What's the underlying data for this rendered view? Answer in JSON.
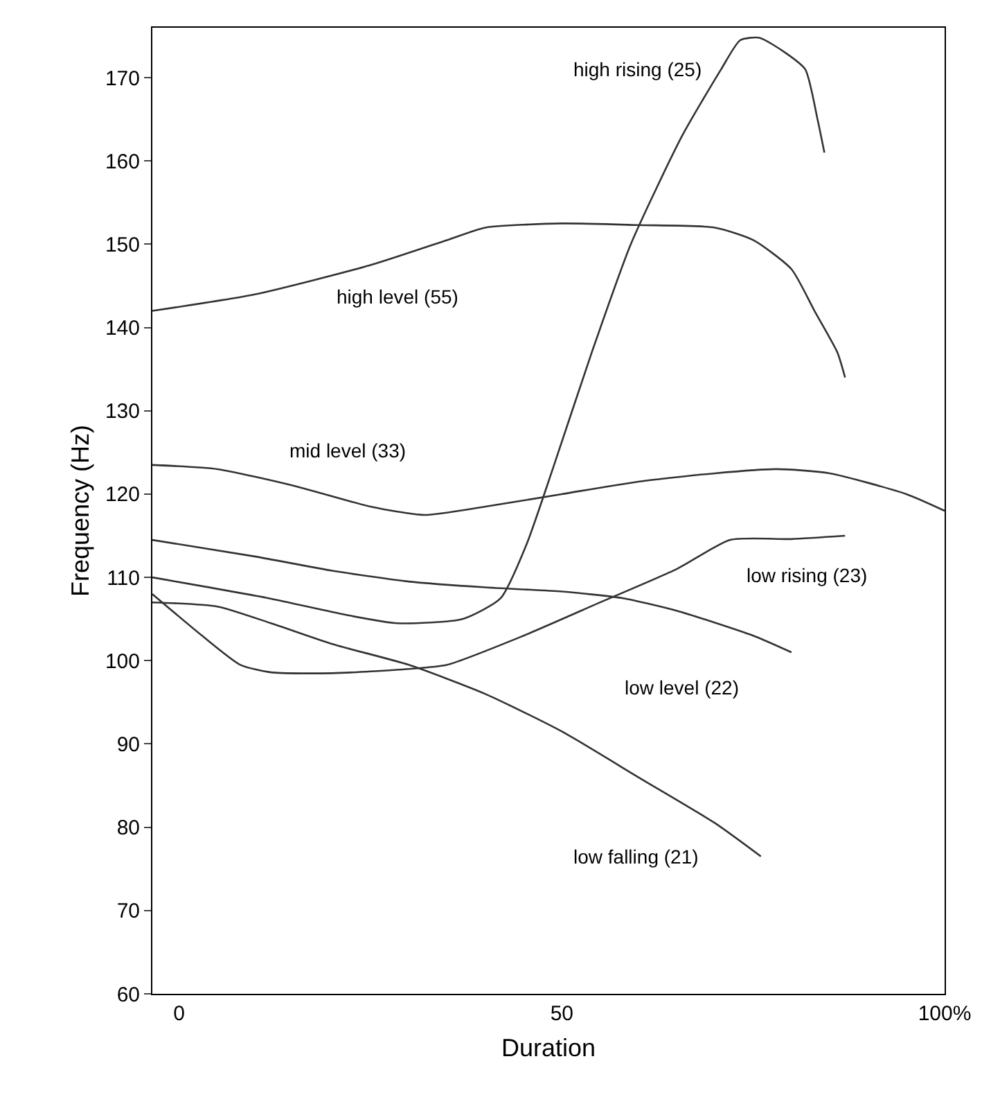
{
  "chart_data": {
    "type": "line",
    "xlabel": "Duration",
    "ylabel": "Frequency (Hz)",
    "xlim": [
      -3.5,
      100
    ],
    "xticks": [
      0,
      50,
      {
        "value": 100,
        "label": "100%"
      }
    ],
    "ylim": [
      60,
      176
    ],
    "yticks": [
      60,
      70,
      80,
      90,
      100,
      110,
      120,
      130,
      140,
      150,
      160,
      170
    ],
    "grid": false,
    "legend": false,
    "marker": "none",
    "line_style": "solid",
    "series": [
      {
        "name": "high rising (25)",
        "color": "#333333",
        "x": [
          -3.5,
          11.7,
          21.8,
          28.5,
          37,
          42,
          45.4,
          48.8,
          53.9,
          59,
          65.7,
          70.8,
          73.3,
          75.8,
          79.2,
          81.8,
          83.4,
          84.3
        ],
        "values": [
          110,
          107.5,
          105.5,
          104.5,
          105,
          107.5,
          114,
          123,
          137,
          150,
          163,
          171,
          174.5,
          174.8,
          173,
          171,
          165,
          161
        ]
      },
      {
        "name": "high level (55)",
        "color": "#333333",
        "x": [
          -3.5,
          10,
          25,
          35,
          40,
          50,
          60,
          70,
          75,
          80,
          83,
          86,
          87
        ],
        "values": [
          142,
          144,
          147.5,
          150.5,
          152,
          152.5,
          152.3,
          152,
          150.5,
          147,
          142,
          137,
          134
        ]
      },
      {
        "name": "mid level (33)",
        "color": "#333333",
        "x": [
          -3.5,
          5,
          15,
          25,
          32,
          40,
          50,
          60,
          70,
          78,
          85,
          95,
          100
        ],
        "values": [
          123.5,
          123,
          121,
          118.5,
          117.5,
          118.5,
          120,
          121.5,
          122.5,
          123,
          122.5,
          120,
          118
        ]
      },
      {
        "name": "low level (22)",
        "color": "#333333",
        "x": [
          -3.5,
          10,
          20,
          30,
          40,
          50,
          58,
          65,
          75,
          80
        ],
        "values": [
          114.5,
          112.5,
          110.8,
          109.5,
          108.8,
          108.3,
          107.5,
          106,
          103,
          101
        ]
      },
      {
        "name": "low rising (23)",
        "color": "#333333",
        "x": [
          -3.5,
          3,
          8,
          12,
          20,
          30,
          35,
          45,
          55,
          65,
          72,
          80,
          87
        ],
        "values": [
          108,
          103,
          99.5,
          98.6,
          98.5,
          99,
          99.5,
          103,
          107,
          111,
          114.5,
          114.6,
          115
        ]
      },
      {
        "name": "low falling (21)",
        "color": "#333333",
        "x": [
          -3.5,
          5,
          12,
          20,
          30,
          40,
          50,
          60,
          70,
          76
        ],
        "values": [
          107,
          106.5,
          104.5,
          102,
          99.5,
          96,
          91.5,
          86,
          80.5,
          76.5
        ]
      }
    ]
  }
}
